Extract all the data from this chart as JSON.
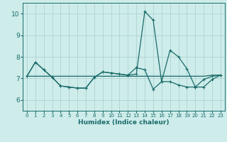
{
  "xlabel": "Humidex (Indice chaleur)",
  "xlim": [
    -0.5,
    23.5
  ],
  "ylim": [
    5.5,
    10.5
  ],
  "yticks": [
    6,
    7,
    8,
    9,
    10
  ],
  "xticks": [
    0,
    1,
    2,
    3,
    4,
    5,
    6,
    7,
    8,
    9,
    10,
    11,
    12,
    13,
    14,
    15,
    16,
    17,
    18,
    19,
    20,
    21,
    22,
    23
  ],
  "bg_color": "#cdecea",
  "grid_color": "#aed4d2",
  "line_color": "#1a6b6a",
  "line1_y": [
    7.1,
    7.75,
    7.4,
    7.05,
    6.65,
    6.6,
    6.55,
    6.55,
    7.05,
    7.3,
    7.25,
    7.2,
    7.15,
    7.2,
    10.1,
    9.7,
    6.85,
    8.3,
    8.0,
    7.45,
    6.6,
    6.6,
    6.95,
    7.15
  ],
  "line2_y": [
    7.1,
    7.75,
    7.4,
    7.05,
    6.65,
    6.6,
    6.55,
    6.55,
    7.05,
    7.3,
    7.25,
    7.2,
    7.15,
    7.5,
    7.4,
    6.5,
    6.85,
    6.85,
    6.7,
    6.6,
    6.6,
    6.95,
    7.1,
    7.15
  ],
  "line3_y": [
    7.1,
    7.1,
    7.1,
    7.1,
    7.1,
    7.1,
    7.1,
    7.1,
    7.1,
    7.1,
    7.1,
    7.1,
    7.1,
    7.1,
    7.1,
    7.1,
    7.1,
    7.1,
    7.1,
    7.1,
    7.1,
    7.1,
    7.15,
    7.15
  ]
}
